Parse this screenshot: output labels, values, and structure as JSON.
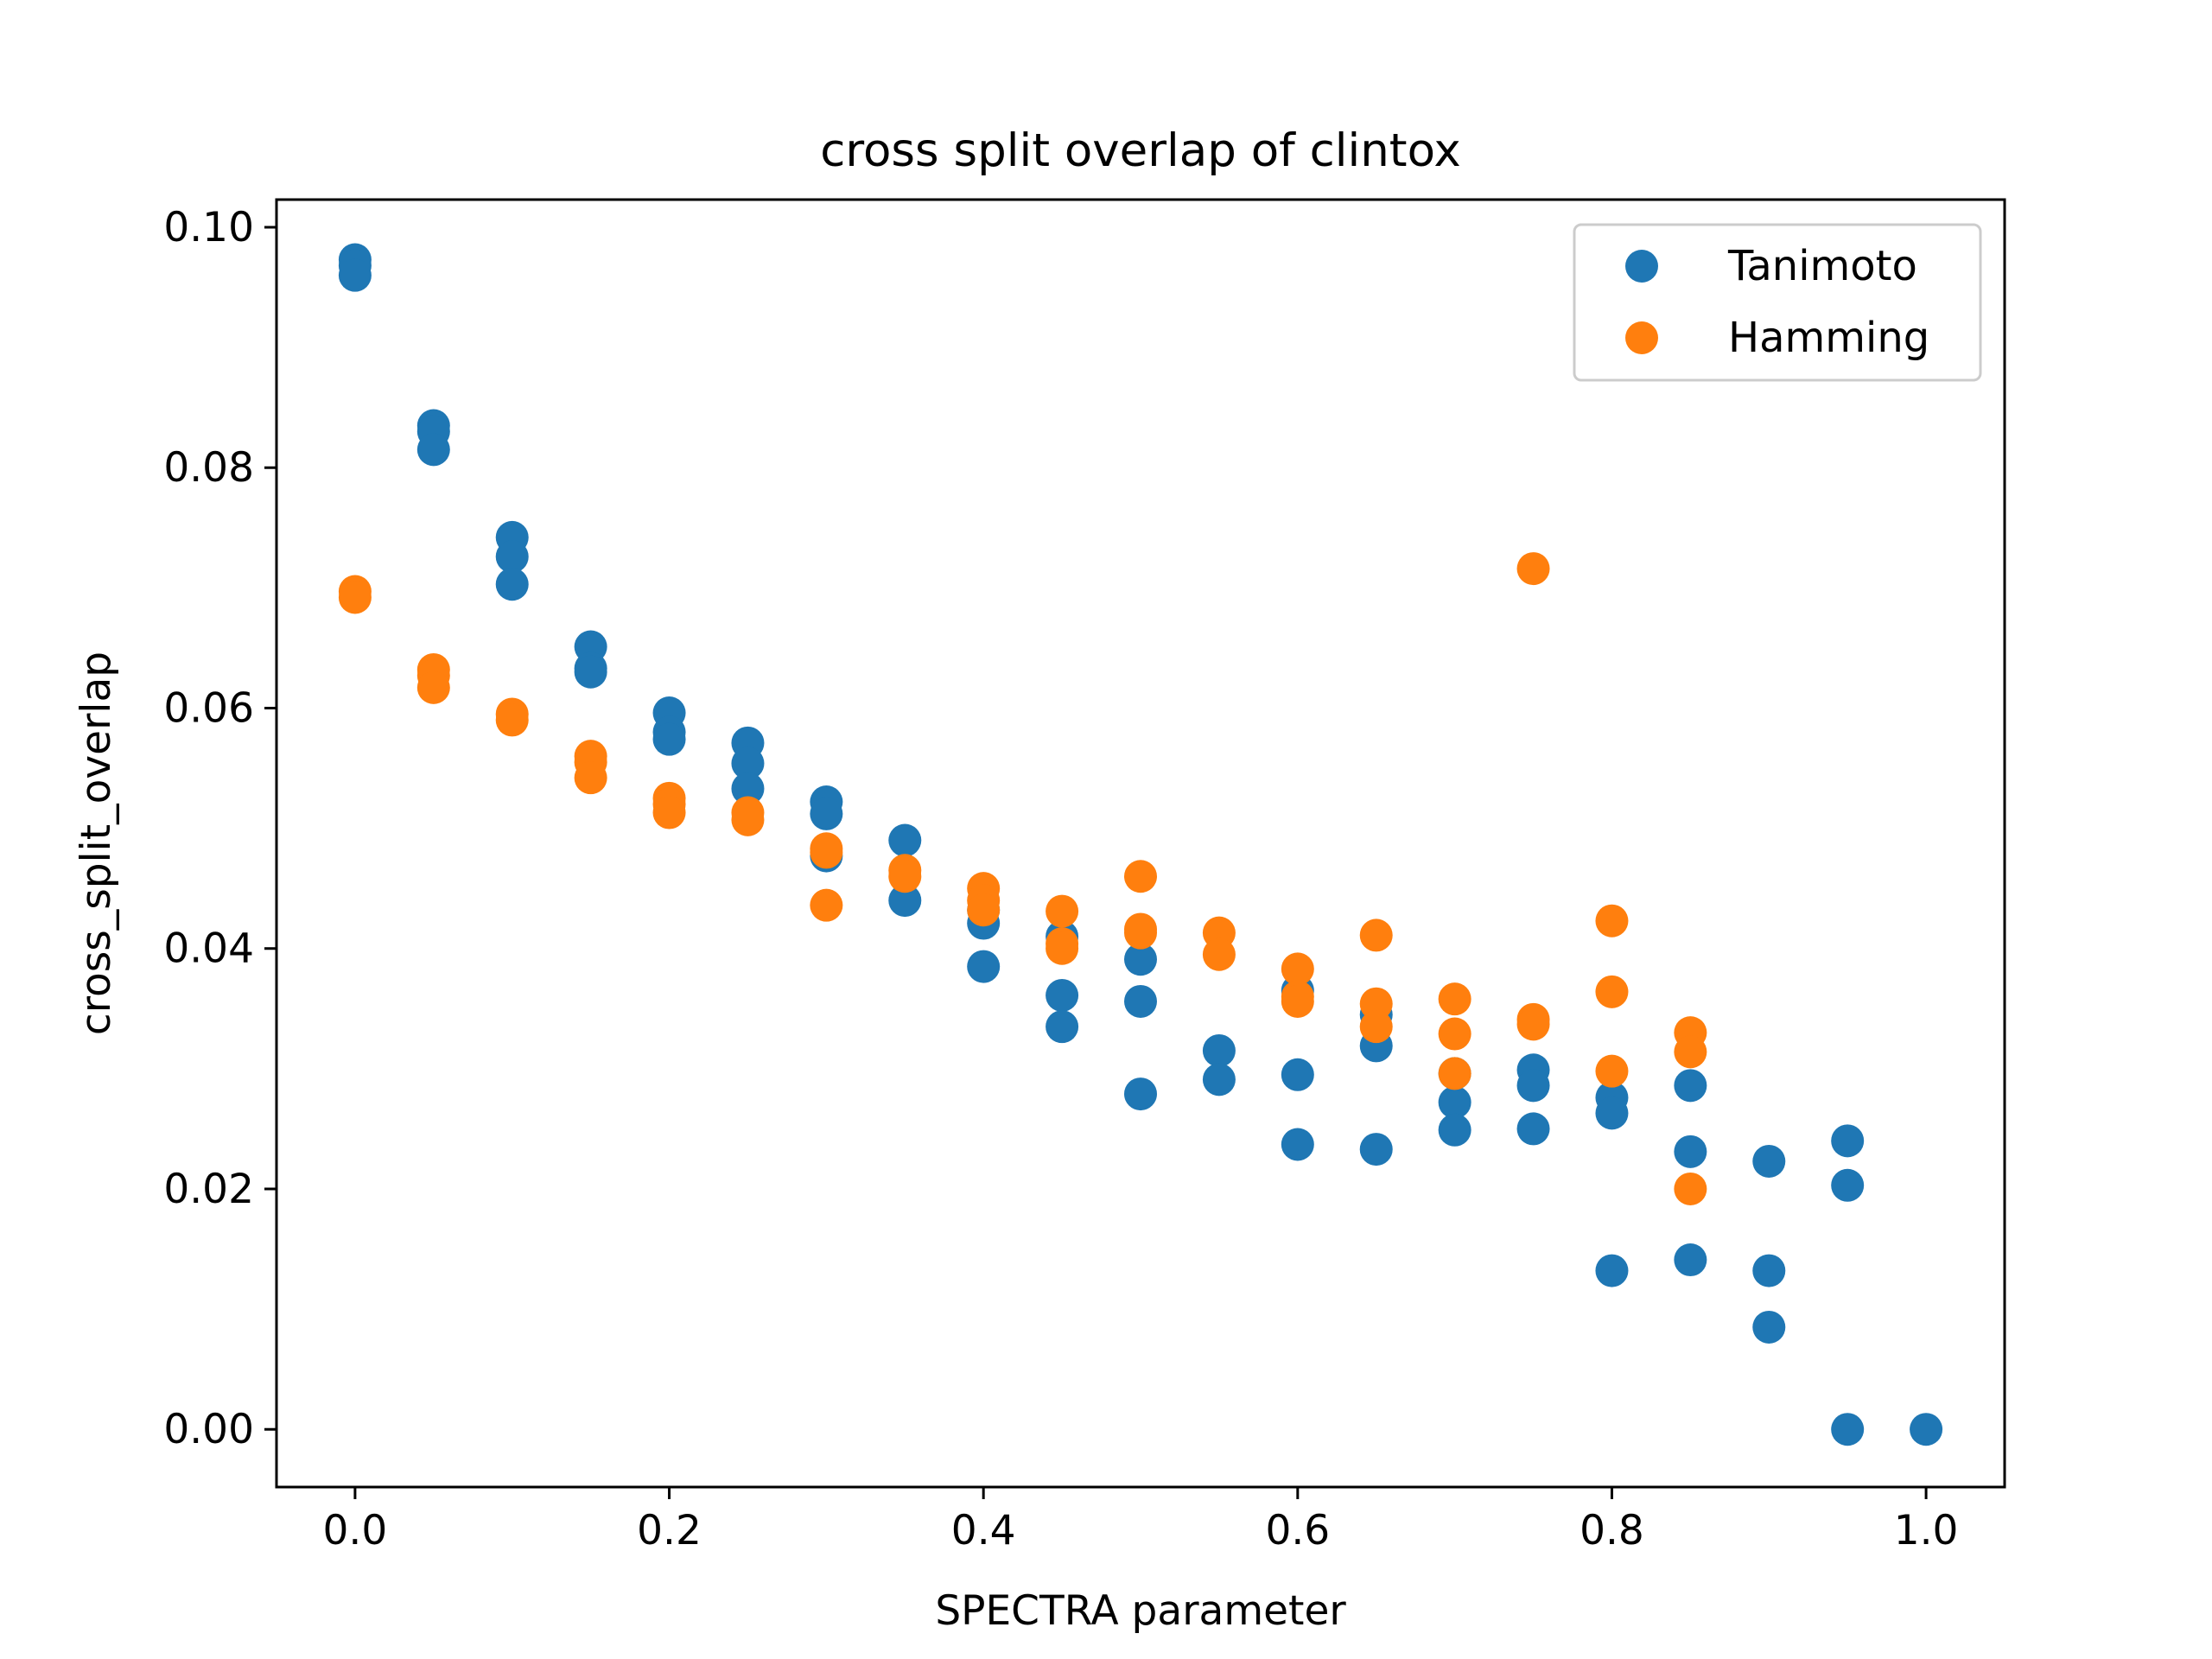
{
  "chart_data": {
    "type": "scatter",
    "title": "cross split overlap of clintox",
    "xlabel": "SPECTRA parameter",
    "ylabel": "cross_split_overlap",
    "xlim": [
      -0.05,
      1.05
    ],
    "ylim": [
      -0.0048,
      0.1023
    ],
    "xticks": [
      0.0,
      0.2,
      0.4,
      0.6,
      0.8,
      1.0
    ],
    "xtick_labels": [
      "0.0",
      "0.2",
      "0.4",
      "0.6",
      "0.8",
      "1.0"
    ],
    "yticks": [
      0.0,
      0.02,
      0.04,
      0.06,
      0.08,
      0.1
    ],
    "ytick_labels": [
      "0.00",
      "0.02",
      "0.04",
      "0.06",
      "0.08",
      "0.10"
    ],
    "grid": false,
    "legend_position": "top-right",
    "series": [
      {
        "name": "Tanimoto",
        "color": "#1f77b4",
        "points": [
          [
            0.0,
            0.0973
          ],
          [
            0.0,
            0.0968
          ],
          [
            0.0,
            0.096
          ],
          [
            0.05,
            0.0835
          ],
          [
            0.05,
            0.083
          ],
          [
            0.05,
            0.0815
          ],
          [
            0.1,
            0.0742
          ],
          [
            0.1,
            0.0726
          ],
          [
            0.1,
            0.0703
          ],
          [
            0.15,
            0.0651
          ],
          [
            0.15,
            0.0633
          ],
          [
            0.15,
            0.063
          ],
          [
            0.2,
            0.0596
          ],
          [
            0.2,
            0.058
          ],
          [
            0.2,
            0.0574
          ],
          [
            0.25,
            0.0571
          ],
          [
            0.25,
            0.0554
          ],
          [
            0.25,
            0.0533
          ],
          [
            0.3,
            0.0522
          ],
          [
            0.3,
            0.0512
          ],
          [
            0.3,
            0.0477
          ],
          [
            0.35,
            0.049
          ],
          [
            0.35,
            0.044
          ],
          [
            0.4,
            0.0432
          ],
          [
            0.4,
            0.0421
          ],
          [
            0.4,
            0.0385
          ],
          [
            0.45,
            0.041
          ],
          [
            0.45,
            0.0361
          ],
          [
            0.45,
            0.0335
          ],
          [
            0.5,
            0.0391
          ],
          [
            0.5,
            0.0356
          ],
          [
            0.5,
            0.0279
          ],
          [
            0.55,
            0.0315
          ],
          [
            0.55,
            0.0291
          ],
          [
            0.6,
            0.0365
          ],
          [
            0.6,
            0.0295
          ],
          [
            0.6,
            0.0237
          ],
          [
            0.65,
            0.0345
          ],
          [
            0.65,
            0.0319
          ],
          [
            0.65,
            0.0233
          ],
          [
            0.7,
            0.0296
          ],
          [
            0.7,
            0.0272
          ],
          [
            0.7,
            0.0249
          ],
          [
            0.75,
            0.0299
          ],
          [
            0.75,
            0.0286
          ],
          [
            0.75,
            0.025
          ],
          [
            0.8,
            0.0276
          ],
          [
            0.8,
            0.0263
          ],
          [
            0.8,
            0.0132
          ],
          [
            0.85,
            0.0286
          ],
          [
            0.85,
            0.0231
          ],
          [
            0.85,
            0.0141
          ],
          [
            0.9,
            0.0223
          ],
          [
            0.9,
            0.0132
          ],
          [
            0.9,
            0.0085
          ],
          [
            0.95,
            0.024
          ],
          [
            0.95,
            0.0203
          ],
          [
            0.95,
            0.0
          ],
          [
            1.0,
            0.0
          ]
        ]
      },
      {
        "name": "Hamming",
        "color": "#ff7f0e",
        "points": [
          [
            0.0,
            0.0697
          ],
          [
            0.0,
            0.0692
          ],
          [
            0.05,
            0.0632
          ],
          [
            0.05,
            0.0627
          ],
          [
            0.05,
            0.0617
          ],
          [
            0.1,
            0.0595
          ],
          [
            0.1,
            0.059
          ],
          [
            0.15,
            0.056
          ],
          [
            0.15,
            0.0555
          ],
          [
            0.15,
            0.0542
          ],
          [
            0.2,
            0.0525
          ],
          [
            0.2,
            0.052
          ],
          [
            0.2,
            0.0513
          ],
          [
            0.25,
            0.0513
          ],
          [
            0.25,
            0.0507
          ],
          [
            0.3,
            0.0483
          ],
          [
            0.3,
            0.048
          ],
          [
            0.3,
            0.0436
          ],
          [
            0.35,
            0.0465
          ],
          [
            0.35,
            0.046
          ],
          [
            0.4,
            0.045
          ],
          [
            0.4,
            0.044
          ],
          [
            0.4,
            0.0432
          ],
          [
            0.45,
            0.0431
          ],
          [
            0.45,
            0.0404
          ],
          [
            0.45,
            0.04
          ],
          [
            0.5,
            0.046
          ],
          [
            0.5,
            0.0416
          ],
          [
            0.5,
            0.0413
          ],
          [
            0.55,
            0.0413
          ],
          [
            0.55,
            0.0395
          ],
          [
            0.6,
            0.0383
          ],
          [
            0.6,
            0.036
          ],
          [
            0.6,
            0.0356
          ],
          [
            0.65,
            0.0411
          ],
          [
            0.65,
            0.0354
          ],
          [
            0.65,
            0.0335
          ],
          [
            0.7,
            0.0358
          ],
          [
            0.7,
            0.0329
          ],
          [
            0.7,
            0.0296
          ],
          [
            0.75,
            0.0716
          ],
          [
            0.75,
            0.0341
          ],
          [
            0.75,
            0.0337
          ],
          [
            0.8,
            0.0423
          ],
          [
            0.8,
            0.0364
          ],
          [
            0.8,
            0.0298
          ],
          [
            0.85,
            0.033
          ],
          [
            0.85,
            0.0314
          ],
          [
            0.85,
            0.02
          ]
        ]
      }
    ]
  }
}
